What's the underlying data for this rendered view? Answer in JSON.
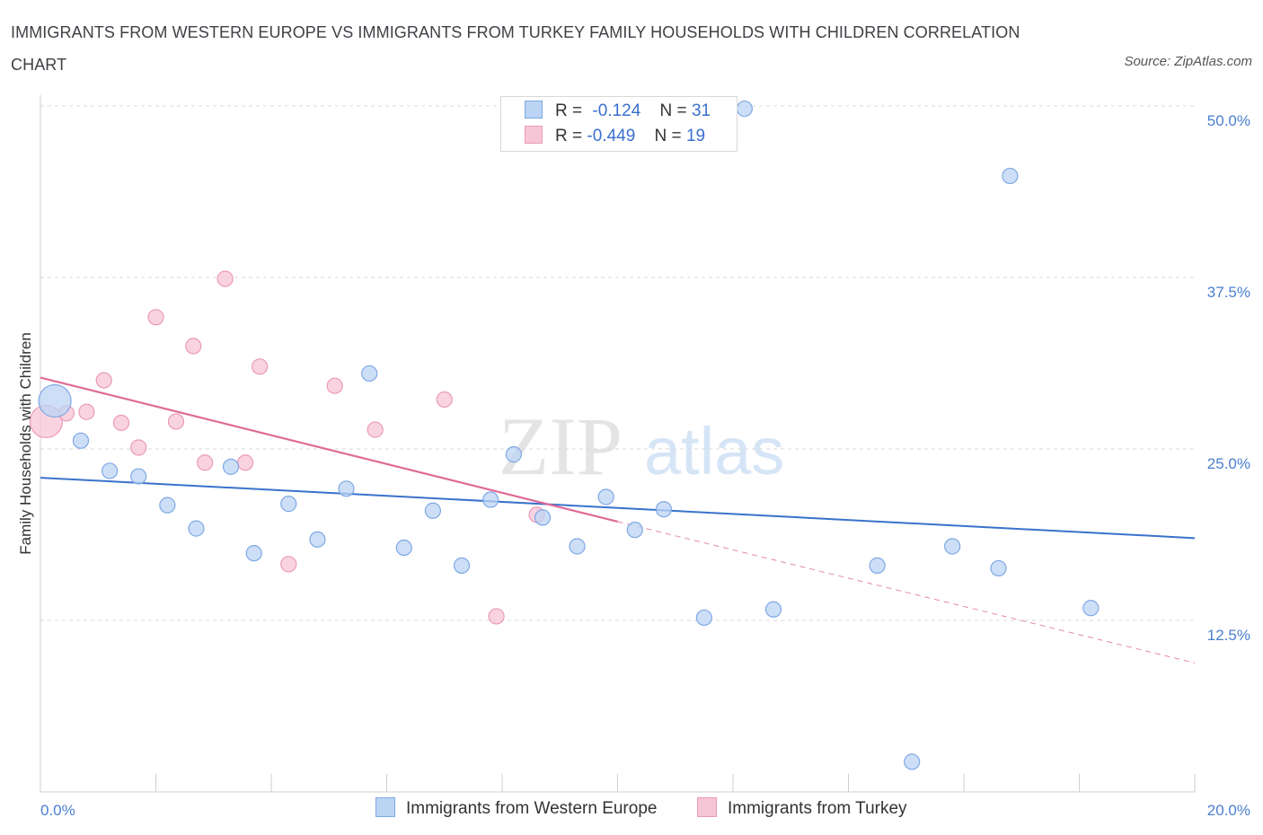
{
  "title": "IMMIGRANTS FROM WESTERN EUROPE VS IMMIGRANTS FROM TURKEY FAMILY HOUSEHOLDS WITH CHILDREN CORRELATION CHART",
  "source": "Source: ZipAtlas.com",
  "watermark": {
    "zip": "ZIP",
    "atlas": "atlas"
  },
  "legend": {
    "r_label": "R =",
    "n_label": "N =",
    "rows": [
      {
        "r": "-0.124",
        "n": "31"
      },
      {
        "r": "-0.449",
        "n": "19"
      }
    ]
  },
  "colors": {
    "blue_fill": "#bcd4f4",
    "blue_stroke": "#7ea8e4",
    "blue_line": "#3a72cc",
    "pink_fill": "#f7c6d6",
    "pink_stroke": "#eb9ab6",
    "pink_line": "#e06a97",
    "grid": "#d9d9d9",
    "tick_text": "#4a7fcf"
  },
  "chart_data": {
    "type": "scatter",
    "title": "IMMIGRANTS FROM WESTERN EUROPE VS IMMIGRANTS FROM TURKEY FAMILY HOUSEHOLDS WITH CHILDREN CORRELATION CHART",
    "xlabel": "",
    "ylabel": "Family Households with Children",
    "xlim": [
      0,
      20
    ],
    "ylim": [
      0,
      50
    ],
    "x_tick_labels": [
      "0.0%",
      "20.0%"
    ],
    "y_ticks": [
      12.5,
      25.0,
      37.5,
      50.0
    ],
    "y_tick_labels": [
      "12.5%",
      "25.0%",
      "37.5%",
      "50.0%"
    ],
    "grid": true,
    "legend_position": "top-center",
    "series": [
      {
        "name": "Immigrants from Western Europe",
        "color": "blue",
        "R": -0.124,
        "N": 31,
        "trend": {
          "x0": 0,
          "y0": 22.9,
          "x1": 20,
          "y1": 18.5
        },
        "points": [
          {
            "x": 0.25,
            "y": 28.5,
            "size": "large"
          },
          {
            "x": 0.7,
            "y": 25.6
          },
          {
            "x": 1.2,
            "y": 23.4
          },
          {
            "x": 1.7,
            "y": 23.0
          },
          {
            "x": 2.2,
            "y": 20.9
          },
          {
            "x": 2.7,
            "y": 19.2
          },
          {
            "x": 3.3,
            "y": 23.7
          },
          {
            "x": 3.7,
            "y": 17.4
          },
          {
            "x": 4.3,
            "y": 21.0
          },
          {
            "x": 4.8,
            "y": 18.4
          },
          {
            "x": 5.3,
            "y": 22.1
          },
          {
            "x": 5.7,
            "y": 30.5
          },
          {
            "x": 6.3,
            "y": 17.8
          },
          {
            "x": 6.8,
            "y": 20.5
          },
          {
            "x": 7.3,
            "y": 16.5
          },
          {
            "x": 7.8,
            "y": 21.3
          },
          {
            "x": 8.2,
            "y": 24.6
          },
          {
            "x": 8.7,
            "y": 20.0
          },
          {
            "x": 9.3,
            "y": 17.9
          },
          {
            "x": 9.8,
            "y": 21.5
          },
          {
            "x": 10.3,
            "y": 19.1
          },
          {
            "x": 10.8,
            "y": 20.6
          },
          {
            "x": 11.5,
            "y": 12.7
          },
          {
            "x": 12.2,
            "y": 49.8
          },
          {
            "x": 12.7,
            "y": 13.3
          },
          {
            "x": 14.5,
            "y": 16.5
          },
          {
            "x": 15.1,
            "y": 2.2
          },
          {
            "x": 15.8,
            "y": 17.9
          },
          {
            "x": 16.6,
            "y": 16.3
          },
          {
            "x": 16.8,
            "y": 44.9
          },
          {
            "x": 18.2,
            "y": 13.4
          }
        ]
      },
      {
        "name": "Immigrants from Turkey",
        "color": "pink",
        "R": -0.449,
        "N": 19,
        "trend": {
          "x0": 0,
          "y0": 30.2,
          "x1": 10.0,
          "y1": 19.7
        },
        "trend_extension": {
          "x0": 10.0,
          "y0": 19.7,
          "x1": 20,
          "y1": 9.4
        },
        "points": [
          {
            "x": 0.1,
            "y": 27.0,
            "size": "large"
          },
          {
            "x": 0.45,
            "y": 27.6
          },
          {
            "x": 0.8,
            "y": 27.7
          },
          {
            "x": 1.1,
            "y": 30.0
          },
          {
            "x": 1.4,
            "y": 26.9
          },
          {
            "x": 1.7,
            "y": 25.1
          },
          {
            "x": 2.0,
            "y": 34.6
          },
          {
            "x": 2.35,
            "y": 27.0
          },
          {
            "x": 2.65,
            "y": 32.5
          },
          {
            "x": 2.85,
            "y": 24.0
          },
          {
            "x": 3.2,
            "y": 37.4
          },
          {
            "x": 3.55,
            "y": 24.0
          },
          {
            "x": 3.8,
            "y": 31.0
          },
          {
            "x": 4.3,
            "y": 16.6
          },
          {
            "x": 5.1,
            "y": 29.6
          },
          {
            "x": 5.8,
            "y": 26.4
          },
          {
            "x": 7.0,
            "y": 28.6
          },
          {
            "x": 7.9,
            "y": 12.8
          },
          {
            "x": 8.6,
            "y": 20.2
          }
        ]
      }
    ]
  }
}
